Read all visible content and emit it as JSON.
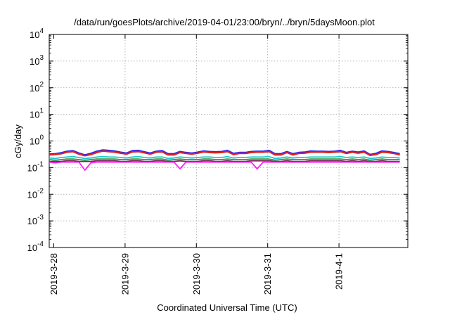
{
  "chart_data": {
    "type": "line",
    "title": "/data/run/goesPlots/archive/2019-04-01/23:00/bryn/../bryn/5daysMoon.plot",
    "xlabel": "Coordinated Universal Time (UTC)",
    "ylabel": "cGy/day",
    "yscale": "log",
    "ylim": [
      0.0001,
      10000
    ],
    "xlim": [
      "2019-03-28 00:00",
      "2019-04-01 23:59"
    ],
    "y_ticks": [
      {
        "base": "10",
        "exp": "-4"
      },
      {
        "base": "10",
        "exp": "-3"
      },
      {
        "base": "10",
        "exp": "-2"
      },
      {
        "base": "10",
        "exp": "-1"
      },
      {
        "base": "10",
        "exp": "0"
      },
      {
        "base": "10",
        "exp": "1"
      },
      {
        "base": "10",
        "exp": "2"
      },
      {
        "base": "10",
        "exp": "3"
      },
      {
        "base": "10",
        "exp": "4"
      }
    ],
    "x_ticks": [
      "2019-3-28",
      "2019-3-29",
      "2019-3-30",
      "2019-3-31",
      "2019-4-1"
    ],
    "grid": true,
    "sample_interval_hours": 2,
    "series": [
      {
        "color": "#2b2bff",
        "values": [
          0.32,
          0.33,
          0.36,
          0.41,
          0.43,
          0.35,
          0.3,
          0.34,
          0.41,
          0.46,
          0.44,
          0.42,
          0.38,
          0.35,
          0.43,
          0.44,
          0.39,
          0.35,
          0.41,
          0.43,
          0.33,
          0.33,
          0.4,
          0.37,
          0.35,
          0.38,
          0.42,
          0.4,
          0.39,
          0.4,
          0.44,
          0.34,
          0.37,
          0.37,
          0.4,
          0.41,
          0.41,
          0.44,
          0.33,
          0.33,
          0.4,
          0.33,
          0.37,
          0.38,
          0.42,
          0.41,
          0.41,
          0.4,
          0.41,
          0.44,
          0.37,
          0.41,
          0.38,
          0.42,
          0.31,
          0.34,
          0.42,
          0.4,
          0.37,
          0.33
        ]
      },
      {
        "color": "#e02020",
        "values": [
          0.3,
          0.31,
          0.33,
          0.38,
          0.4,
          0.32,
          0.28,
          0.31,
          0.37,
          0.42,
          0.4,
          0.38,
          0.35,
          0.32,
          0.39,
          0.4,
          0.36,
          0.32,
          0.38,
          0.39,
          0.3,
          0.3,
          0.37,
          0.34,
          0.32,
          0.35,
          0.39,
          0.37,
          0.36,
          0.37,
          0.4,
          0.31,
          0.34,
          0.34,
          0.37,
          0.38,
          0.38,
          0.4,
          0.3,
          0.3,
          0.37,
          0.3,
          0.34,
          0.35,
          0.38,
          0.38,
          0.38,
          0.37,
          0.38,
          0.4,
          0.34,
          0.38,
          0.35,
          0.38,
          0.29,
          0.31,
          0.38,
          0.37,
          0.34,
          0.3
        ]
      },
      {
        "color": "#20c8d0",
        "values": [
          0.23,
          0.22,
          0.24,
          0.25,
          0.26,
          0.24,
          0.22,
          0.23,
          0.25,
          0.26,
          0.25,
          0.25,
          0.24,
          0.23,
          0.25,
          0.26,
          0.24,
          0.23,
          0.25,
          0.25,
          0.22,
          0.23,
          0.25,
          0.24,
          0.23,
          0.24,
          0.25,
          0.25,
          0.24,
          0.24,
          0.26,
          0.23,
          0.24,
          0.24,
          0.25,
          0.25,
          0.25,
          0.26,
          0.22,
          0.23,
          0.25,
          0.23,
          0.24,
          0.24,
          0.25,
          0.25,
          0.25,
          0.25,
          0.25,
          0.26,
          0.24,
          0.25,
          0.24,
          0.25,
          0.22,
          0.23,
          0.25,
          0.24,
          0.24,
          0.23
        ]
      },
      {
        "color": "#20a040",
        "values": [
          0.2,
          0.19,
          0.2,
          0.21,
          0.21,
          0.2,
          0.19,
          0.2,
          0.21,
          0.21,
          0.21,
          0.21,
          0.2,
          0.2,
          0.21,
          0.21,
          0.2,
          0.2,
          0.21,
          0.21,
          0.19,
          0.2,
          0.21,
          0.2,
          0.2,
          0.2,
          0.21,
          0.21,
          0.2,
          0.2,
          0.21,
          0.2,
          0.2,
          0.2,
          0.21,
          0.21,
          0.21,
          0.21,
          0.19,
          0.2,
          0.21,
          0.2,
          0.2,
          0.2,
          0.21,
          0.21,
          0.21,
          0.21,
          0.21,
          0.21,
          0.2,
          0.21,
          0.2,
          0.21,
          0.19,
          0.2,
          0.21,
          0.2,
          0.2,
          0.2
        ]
      },
      {
        "color": "#7a2050",
        "values": [
          0.17,
          0.17,
          0.17,
          0.18,
          0.18,
          0.17,
          0.17,
          0.17,
          0.18,
          0.18,
          0.18,
          0.18,
          0.17,
          0.17,
          0.18,
          0.18,
          0.17,
          0.17,
          0.18,
          0.18,
          0.17,
          0.17,
          0.18,
          0.17,
          0.17,
          0.17,
          0.18,
          0.18,
          0.17,
          0.17,
          0.18,
          0.17,
          0.17,
          0.17,
          0.18,
          0.18,
          0.18,
          0.18,
          0.17,
          0.17,
          0.18,
          0.17,
          0.17,
          0.17,
          0.18,
          0.18,
          0.18,
          0.18,
          0.18,
          0.18,
          0.17,
          0.18,
          0.17,
          0.18,
          0.17,
          0.17,
          0.18,
          0.17,
          0.17,
          0.17
        ]
      },
      {
        "color": "#ff20ff",
        "values": [
          0.16,
          0.15,
          0.16,
          0.16,
          0.16,
          0.16,
          0.08,
          0.15,
          0.16,
          0.16,
          0.16,
          0.16,
          0.16,
          0.16,
          0.16,
          0.16,
          0.16,
          0.16,
          0.16,
          0.16,
          0.16,
          0.16,
          0.09,
          0.16,
          0.16,
          0.16,
          0.16,
          0.16,
          0.16,
          0.16,
          0.16,
          0.16,
          0.16,
          0.16,
          0.16,
          0.09,
          0.16,
          0.16,
          0.16,
          0.16,
          0.16,
          0.16,
          0.16,
          0.16,
          0.16,
          0.16,
          0.16,
          0.16,
          0.16,
          0.16,
          0.16,
          0.16,
          0.16,
          0.16,
          0.16,
          0.16,
          0.16,
          0.16,
          0.16,
          0.16
        ]
      }
    ]
  }
}
